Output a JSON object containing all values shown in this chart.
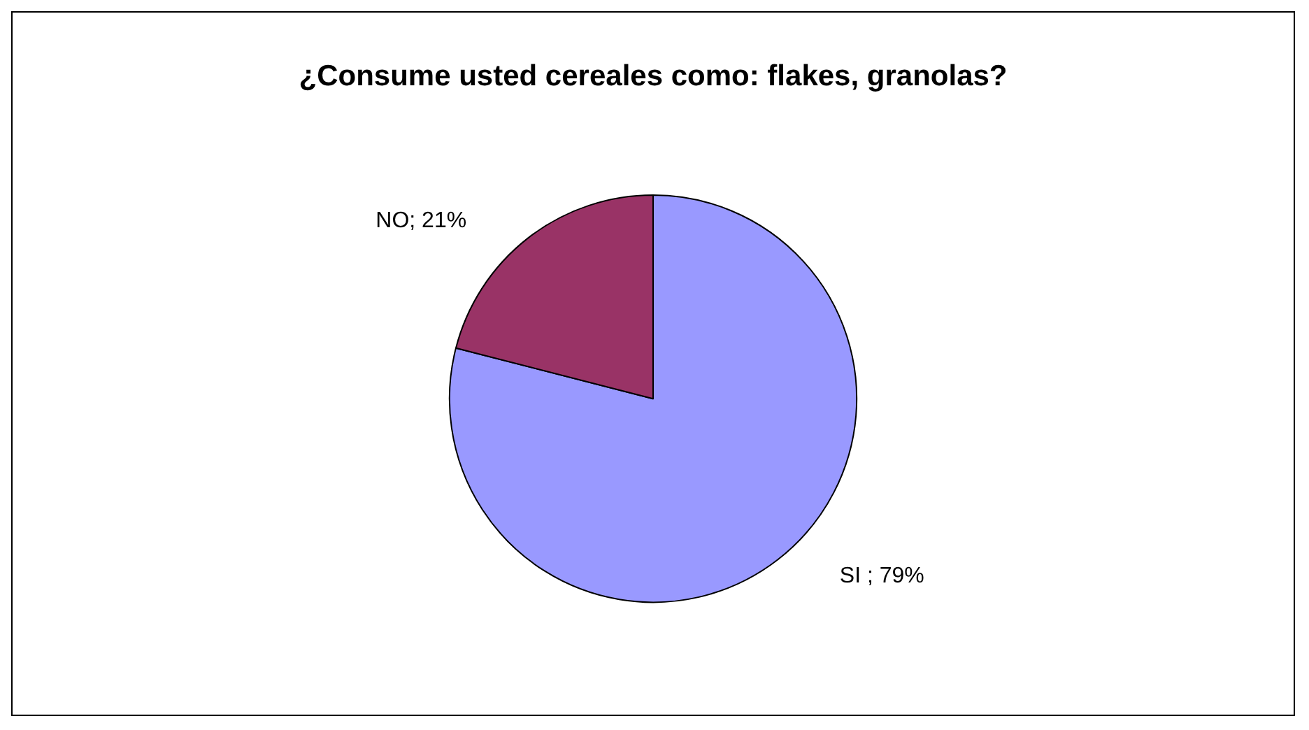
{
  "chart_data": {
    "type": "pie",
    "title": "¿Consume usted cereales como: flakes, granolas?",
    "categories": [
      "SI ",
      "NO"
    ],
    "values": [
      79,
      21
    ],
    "colors": [
      "#9999ff",
      "#993366"
    ],
    "value_labels": [
      "; 79%",
      "; 21%"
    ]
  }
}
